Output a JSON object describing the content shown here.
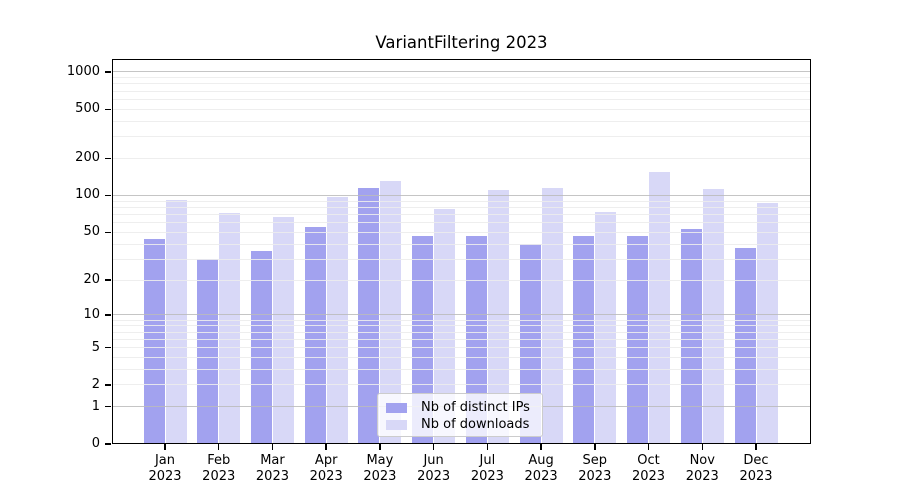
{
  "figure": {
    "title": "VariantFiltering 2023"
  },
  "chart_data": {
    "type": "bar",
    "title": "VariantFiltering 2023",
    "categories": [
      "Jan",
      "Feb",
      "Mar",
      "Apr",
      "May",
      "Jun",
      "Jul",
      "Aug",
      "Sep",
      "Oct",
      "Nov",
      "Dec"
    ],
    "category_year": "2023",
    "series": [
      {
        "name": "Nb of distinct IPs",
        "color": "#a2a2ef",
        "values": [
          44,
          30,
          35,
          55,
          115,
          47,
          47,
          40,
          47,
          47,
          53,
          37
        ]
      },
      {
        "name": "Nb of downloads",
        "color": "#d8d8f7",
        "values": [
          92,
          72,
          67,
          97,
          130,
          78,
          110,
          115,
          73,
          155,
          112,
          87
        ]
      }
    ],
    "y_axis": {
      "scale": "log1p",
      "ticks": [
        0,
        1,
        2,
        5,
        10,
        20,
        50,
        100,
        200,
        500,
        1000
      ],
      "top_value": 1250
    },
    "grid": {
      "minor_values": [
        2,
        3,
        4,
        5,
        6,
        7,
        8,
        9,
        20,
        30,
        40,
        50,
        60,
        70,
        80,
        90,
        200,
        300,
        400,
        500,
        600,
        700,
        800,
        900
      ],
      "major_values": [
        1,
        10,
        100,
        1000
      ]
    },
    "legend_position": "lower center"
  },
  "colors": {
    "background": "#ffffff",
    "axis": "#000000",
    "text": "#000000",
    "grid_minor": "rgba(236,236,236,0.9)",
    "grid_major": "rgba(187,187,187,0.85)",
    "legend_bg": "rgba(255,255,255,0.8)",
    "legend_border": "#cccccc"
  }
}
